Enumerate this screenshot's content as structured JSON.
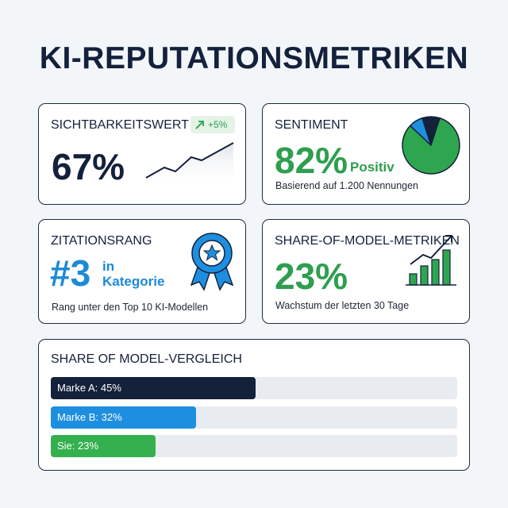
{
  "header": {
    "title": "KI-REPUTATIONSMETRIKEN"
  },
  "visibility": {
    "title": "SICHTBARKEITSWERT",
    "badge": "+5%",
    "value": "67%"
  },
  "sentiment": {
    "title": "SENTIMENT",
    "value": "82%",
    "value_suffix": "Positiv",
    "note": "Basierend auf 1.200 Nennungen",
    "pie": [
      {
        "value": 10,
        "color": "#13213a"
      },
      {
        "value": 82,
        "color": "#2ea650"
      },
      {
        "value": 8,
        "color": "#1e8fe0"
      }
    ]
  },
  "citation": {
    "title": "ZITATIONSRANG",
    "value": "#3",
    "suffix_1": "in",
    "suffix_2": "Kategorie",
    "note": "Rang unter den Top 10 KI-Modellen"
  },
  "share": {
    "title": "SHARE-OF-MODEL-METRIKEN",
    "value": "23%",
    "note": "Wachstum der letzten 30 Tage"
  },
  "comparison": {
    "title": "SHARE OF MODEL-VERGLEICH",
    "bars": [
      {
        "label": "Marke A: 45%",
        "value": 45,
        "color": "#13213a"
      },
      {
        "label": "Marke B: 32%",
        "value": 32,
        "color": "#1e8fe0"
      },
      {
        "label": "Sie: 23%",
        "value": 23,
        "color": "#34b04f"
      }
    ]
  }
}
